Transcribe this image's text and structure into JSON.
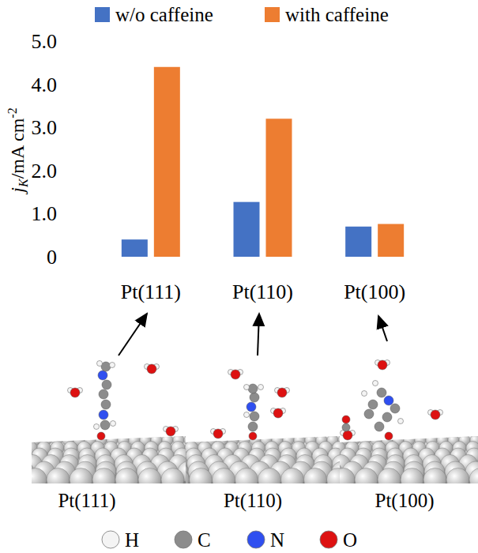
{
  "chart_data": {
    "type": "bar",
    "y_label": {
      "main": "j",
      "sub": "K",
      "unit": "/mA cm",
      "sup": "-2"
    },
    "categories": [
      "Pt(111)",
      "Pt(110)",
      "Pt(100)"
    ],
    "series": [
      {
        "name": "w/o caffeine",
        "color": "#4472c4",
        "values": [
          0.4,
          1.27,
          0.7
        ]
      },
      {
        "name": "with caffeine",
        "color": "#ed7d31",
        "values": [
          4.4,
          3.2,
          0.76
        ]
      }
    ],
    "ylim": [
      0,
      5
    ],
    "yticks": [
      0,
      {
        "value": 1,
        "label": "1.0"
      },
      {
        "value": 2,
        "label": "2.0"
      },
      {
        "value": 3,
        "label": "3.0"
      },
      {
        "value": 4,
        "label": "4.0"
      },
      {
        "value": 5,
        "label": "5.0"
      }
    ],
    "grid": false,
    "legend": "top"
  },
  "illustration": {
    "panels": [
      {
        "label": "Pt(111)"
      },
      {
        "label": "Pt(110)"
      },
      {
        "label": "Pt(100)"
      }
    ],
    "atoms": [
      {
        "symbol": "H",
        "color": "#f4f4f4"
      },
      {
        "symbol": "C",
        "color": "#8c8c8c"
      },
      {
        "symbol": "N",
        "color": "#2f4ff0"
      },
      {
        "symbol": "O",
        "color": "#dd1111"
      }
    ]
  }
}
